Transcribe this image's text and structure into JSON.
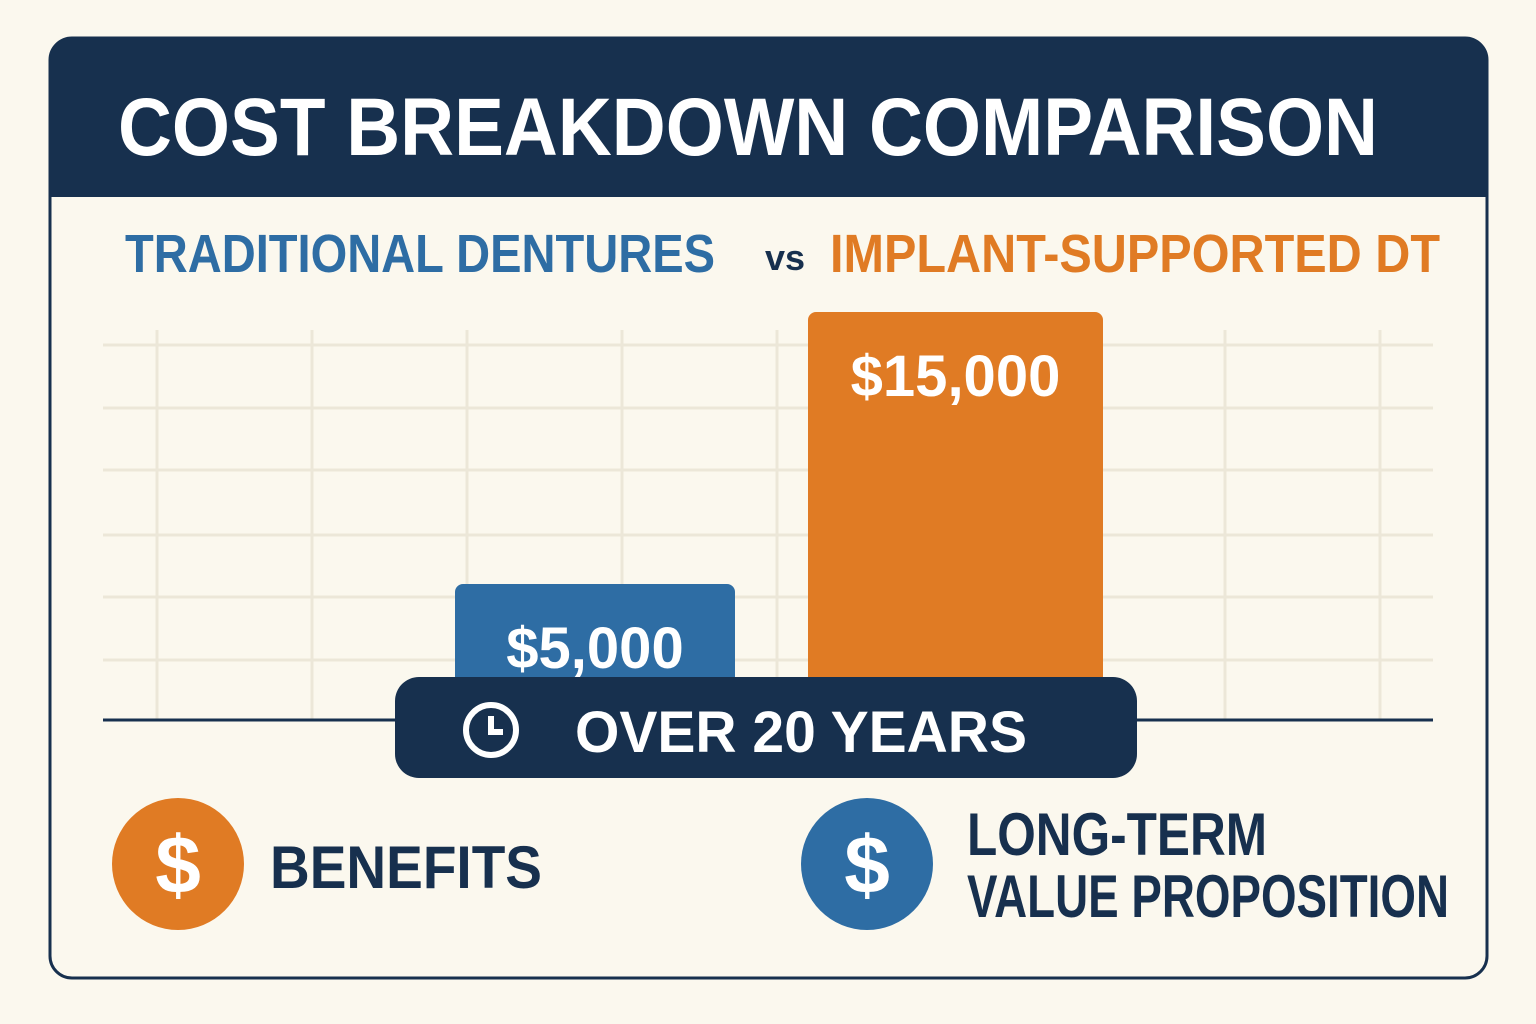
{
  "chart_data": {
    "type": "bar",
    "title": "COST BREAKDOWN COMPARISON",
    "categories": [
      "TRADITIONAL DENTURES",
      "IMPLANT-SUPPORTED DT"
    ],
    "comparison_label": "vs",
    "values": [
      5000,
      15000
    ],
    "value_labels": [
      "$5,000",
      "$15,000"
    ],
    "colors": [
      "#2e6da4",
      "#e07b24"
    ],
    "ylim": [
      0,
      15000
    ],
    "grid": true,
    "period_label": "OVER 20 YEARS",
    "footer_items": [
      {
        "symbol": "$",
        "color": "#e07b24",
        "lines": [
          "BENEFITS"
        ]
      },
      {
        "symbol": "$",
        "color": "#2e6da4",
        "lines": [
          "LONG-TERM",
          "VALUE PROPOSITION"
        ]
      }
    ]
  }
}
